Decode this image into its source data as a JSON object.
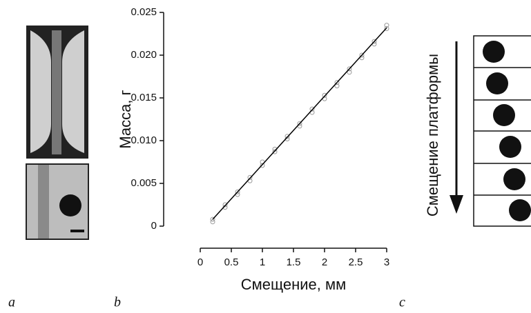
{
  "chart_data": {
    "type": "scatter",
    "xlabel": "Смещение, мм",
    "ylabel": "Масса, г",
    "xlim": [
      0,
      3
    ],
    "xticks": [
      0,
      0.5,
      1,
      1.5,
      2,
      2.5,
      3
    ],
    "ylim": [
      0,
      0.025
    ],
    "yticks": [
      0,
      0.005,
      {
        "value": 0.01,
        "label": "0.010"
      },
      0.015,
      {
        "value": 0.02,
        "label": "0.020"
      },
      0.025
    ],
    "series": [
      {
        "style": "markers",
        "color": "#999999",
        "x": [
          0.2,
          0.2,
          0.4,
          0.4,
          0.6,
          0.6,
          0.8,
          0.8,
          1.0,
          1.0,
          1.2,
          1.2,
          1.4,
          1.4,
          1.6,
          1.6,
          1.8,
          1.8,
          2.0,
          2.0,
          2.2,
          2.2,
          2.4,
          2.4,
          2.6,
          2.6,
          2.8,
          2.8,
          3.0,
          3.0
        ],
        "values": [
          0.0008,
          0.0005,
          0.0025,
          0.0022,
          0.004,
          0.0037,
          0.0057,
          0.0053,
          0.0075,
          0.0071,
          0.009,
          0.0087,
          0.0105,
          0.0102,
          0.012,
          0.0117,
          0.0137,
          0.0133,
          0.0153,
          0.0149,
          0.0168,
          0.0164,
          0.0184,
          0.018,
          0.02,
          0.0197,
          0.0216,
          0.0213,
          0.0235,
          0.0231
        ]
      },
      {
        "style": "line",
        "color": "#000000",
        "x": [
          0.2,
          3.0
        ],
        "values": [
          0.0008,
          0.0232
        ]
      }
    ]
  },
  "panels": {
    "a": "a",
    "b": "b",
    "c": "c",
    "c_axis_label": "Смещение платформы"
  }
}
